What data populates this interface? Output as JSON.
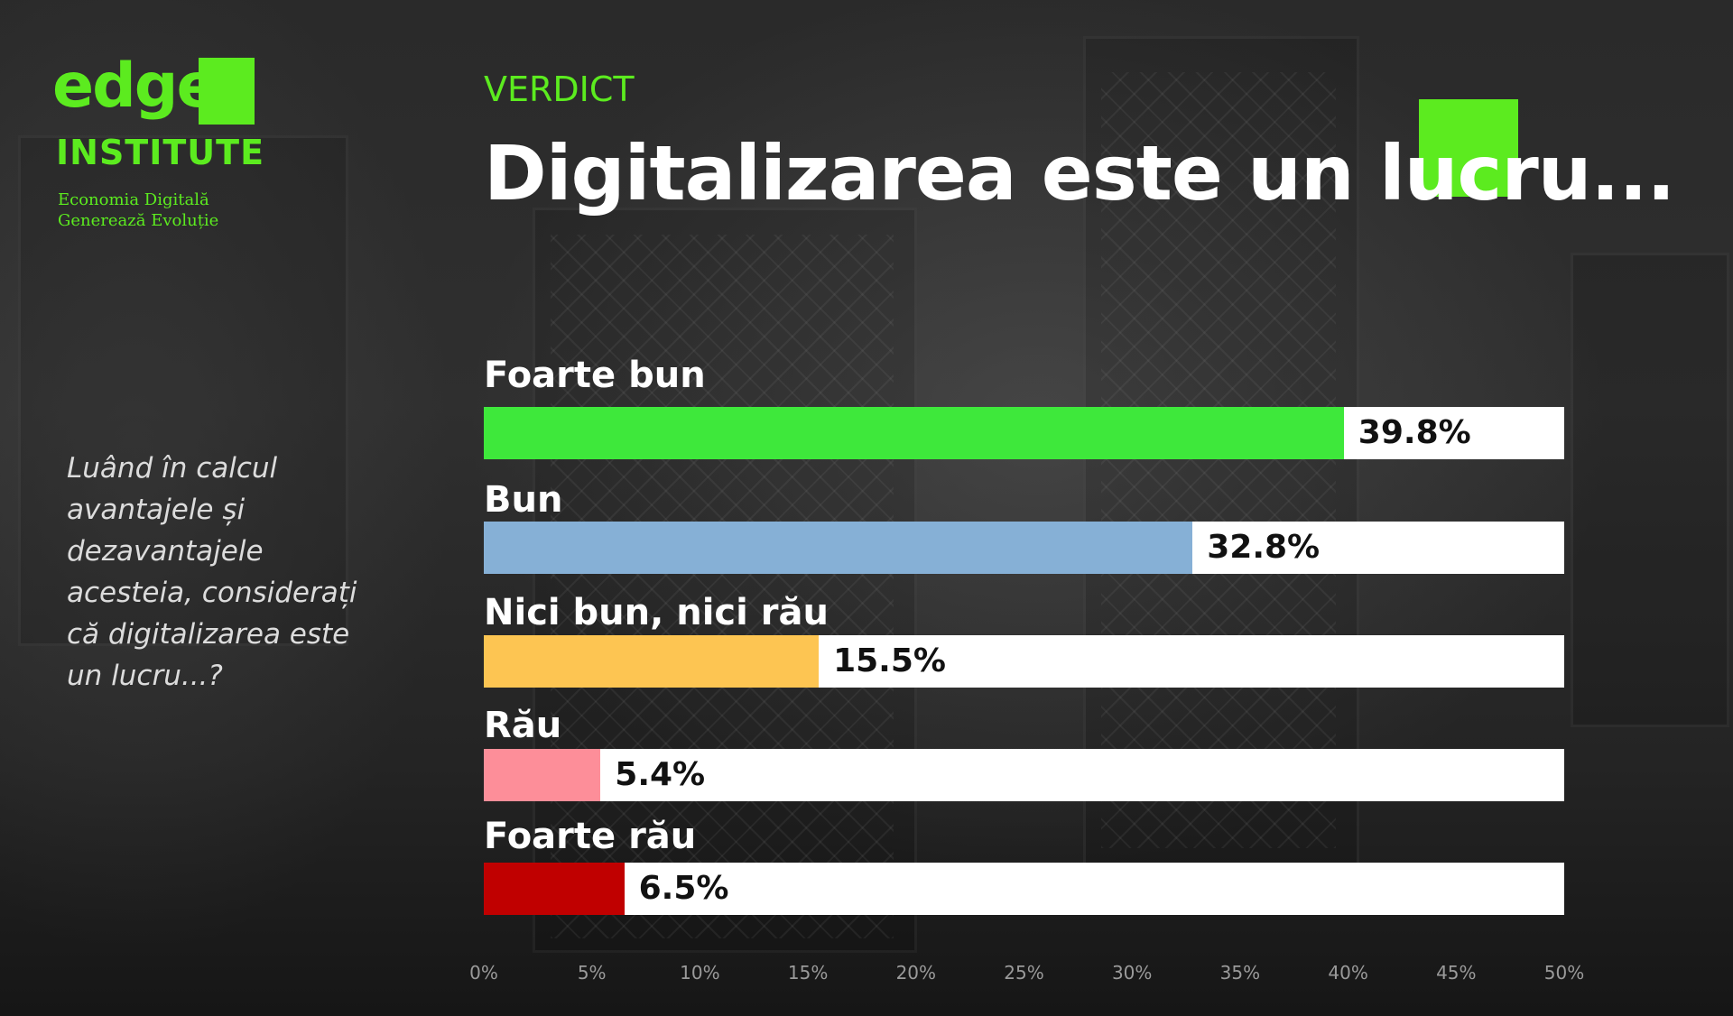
{
  "brand": {
    "logo_word": "edge",
    "logo_sub": "INSTITUTE",
    "tagline_1": "Economia Digitală",
    "tagline_2": "Generează Evoluție",
    "accent_color": "#5ceb1f"
  },
  "header": {
    "kicker": "VERDICT",
    "title": "Digitalizarea este un lucru..."
  },
  "question": "Luând în calcul\navantajele și\ndezavantajele\nacesteia, considerați\ncă digitalizarea este\nun lucru...?",
  "chart_data": {
    "type": "bar",
    "orientation": "horizontal",
    "categories": [
      "Foarte bun",
      "Bun",
      "Nici bun, nici rău",
      "Rău",
      "Foarte rău"
    ],
    "values": [
      39.8,
      32.8,
      15.5,
      5.4,
      6.5
    ],
    "value_labels": [
      "39.8%",
      "32.8%",
      "15.5%",
      "5.4%",
      "6.5%"
    ],
    "colors": [
      "#3ee83b",
      "#86b0d6",
      "#fdc552",
      "#fd8e99",
      "#c00000"
    ],
    "xlim": [
      0,
      50
    ],
    "x_ticks": [
      "0%",
      "5%",
      "10%",
      "15%",
      "20%",
      "25%",
      "30%",
      "35%",
      "40%",
      "45%",
      "50%"
    ],
    "title": "Digitalizarea este un lucru...",
    "grid": false
  }
}
